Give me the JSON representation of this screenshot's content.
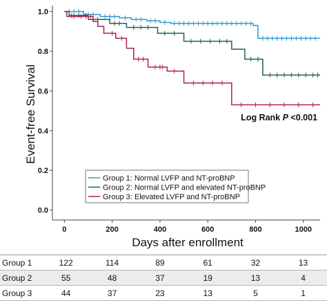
{
  "chart_data": {
    "type": "line",
    "xlabel": "Days after enrollment",
    "ylabel": "Event-free Survival",
    "xlim": [
      -50,
      1070
    ],
    "ylim": [
      -0.05,
      1.03
    ],
    "x_ticks": [
      0,
      200,
      400,
      600,
      800,
      1000
    ],
    "y_ticks": [
      0.0,
      0.2,
      0.4,
      0.6,
      0.8,
      1.0
    ],
    "y_tick_labels": [
      "0.0",
      "0.2",
      "0.4",
      "0.6",
      "0.8",
      "1.0"
    ],
    "annotation": {
      "prefix": "Log Rank ",
      "italic": "P",
      "suffix": " <0.001"
    },
    "legend_position": "center-right",
    "series": [
      {
        "name": "Group 1: Normal LVFP and NT-proBNP",
        "color": "#2f98d1",
        "steps": [
          [
            0,
            1.0
          ],
          [
            80,
            0.985
          ],
          [
            150,
            0.975
          ],
          [
            230,
            0.968
          ],
          [
            280,
            0.96
          ],
          [
            345,
            0.953
          ],
          [
            400,
            0.945
          ],
          [
            445,
            0.94
          ],
          [
            790,
            0.93
          ],
          [
            810,
            0.865
          ],
          [
            1070,
            0.865
          ]
        ],
        "censors": [
          20,
          40,
          60,
          100,
          120,
          170,
          190,
          210,
          255,
          300,
          320,
          360,
          380,
          420,
          460,
          480,
          500,
          520,
          540,
          560,
          580,
          600,
          620,
          640,
          660,
          680,
          700,
          720,
          740,
          760,
          780,
          830,
          850,
          870,
          890,
          910,
          930,
          950,
          970,
          990,
          1010,
          1030,
          1050
        ]
      },
      {
        "name": "Group 2: Normal LVFP and elevated NT-proBNP",
        "color": "#1e5f5a",
        "steps": [
          [
            0,
            1.0
          ],
          [
            20,
            0.98
          ],
          [
            100,
            0.96
          ],
          [
            190,
            0.94
          ],
          [
            260,
            0.92
          ],
          [
            390,
            0.89
          ],
          [
            500,
            0.85
          ],
          [
            700,
            0.81
          ],
          [
            755,
            0.76
          ],
          [
            830,
            0.68
          ],
          [
            1070,
            0.68
          ]
        ],
        "censors": [
          30,
          60,
          90,
          120,
          140,
          210,
          230,
          290,
          320,
          350,
          420,
          460,
          530,
          570,
          610,
          650,
          680,
          780,
          810,
          860,
          890,
          920,
          950,
          980,
          1010,
          1040,
          1060
        ]
      },
      {
        "name": "Group 3: Elevated LVFP and NT-proBNP",
        "color": "#b01e5a",
        "steps": [
          [
            0,
            1.0
          ],
          [
            10,
            0.975
          ],
          [
            120,
            0.95
          ],
          [
            140,
            0.925
          ],
          [
            165,
            0.89
          ],
          [
            215,
            0.865
          ],
          [
            260,
            0.815
          ],
          [
            290,
            0.76
          ],
          [
            350,
            0.72
          ],
          [
            430,
            0.7
          ],
          [
            500,
            0.64
          ],
          [
            700,
            0.53
          ],
          [
            1070,
            0.53
          ]
        ],
        "censors": [
          40,
          70,
          90,
          110,
          200,
          240,
          310,
          330,
          380,
          400,
          410,
          460,
          540,
          580,
          620,
          660,
          740,
          800,
          860,
          920,
          980,
          1040
        ]
      }
    ]
  },
  "risk_table": [
    {
      "group": "Group 1",
      "values": [
        "122",
        "114",
        "89",
        "61",
        "32",
        "13"
      ]
    },
    {
      "group": "Group 2",
      "values": [
        "55",
        "48",
        "37",
        "19",
        "13",
        "4"
      ]
    },
    {
      "group": "Group 3",
      "values": [
        "44",
        "37",
        "23",
        "13",
        "5",
        "1"
      ]
    }
  ]
}
